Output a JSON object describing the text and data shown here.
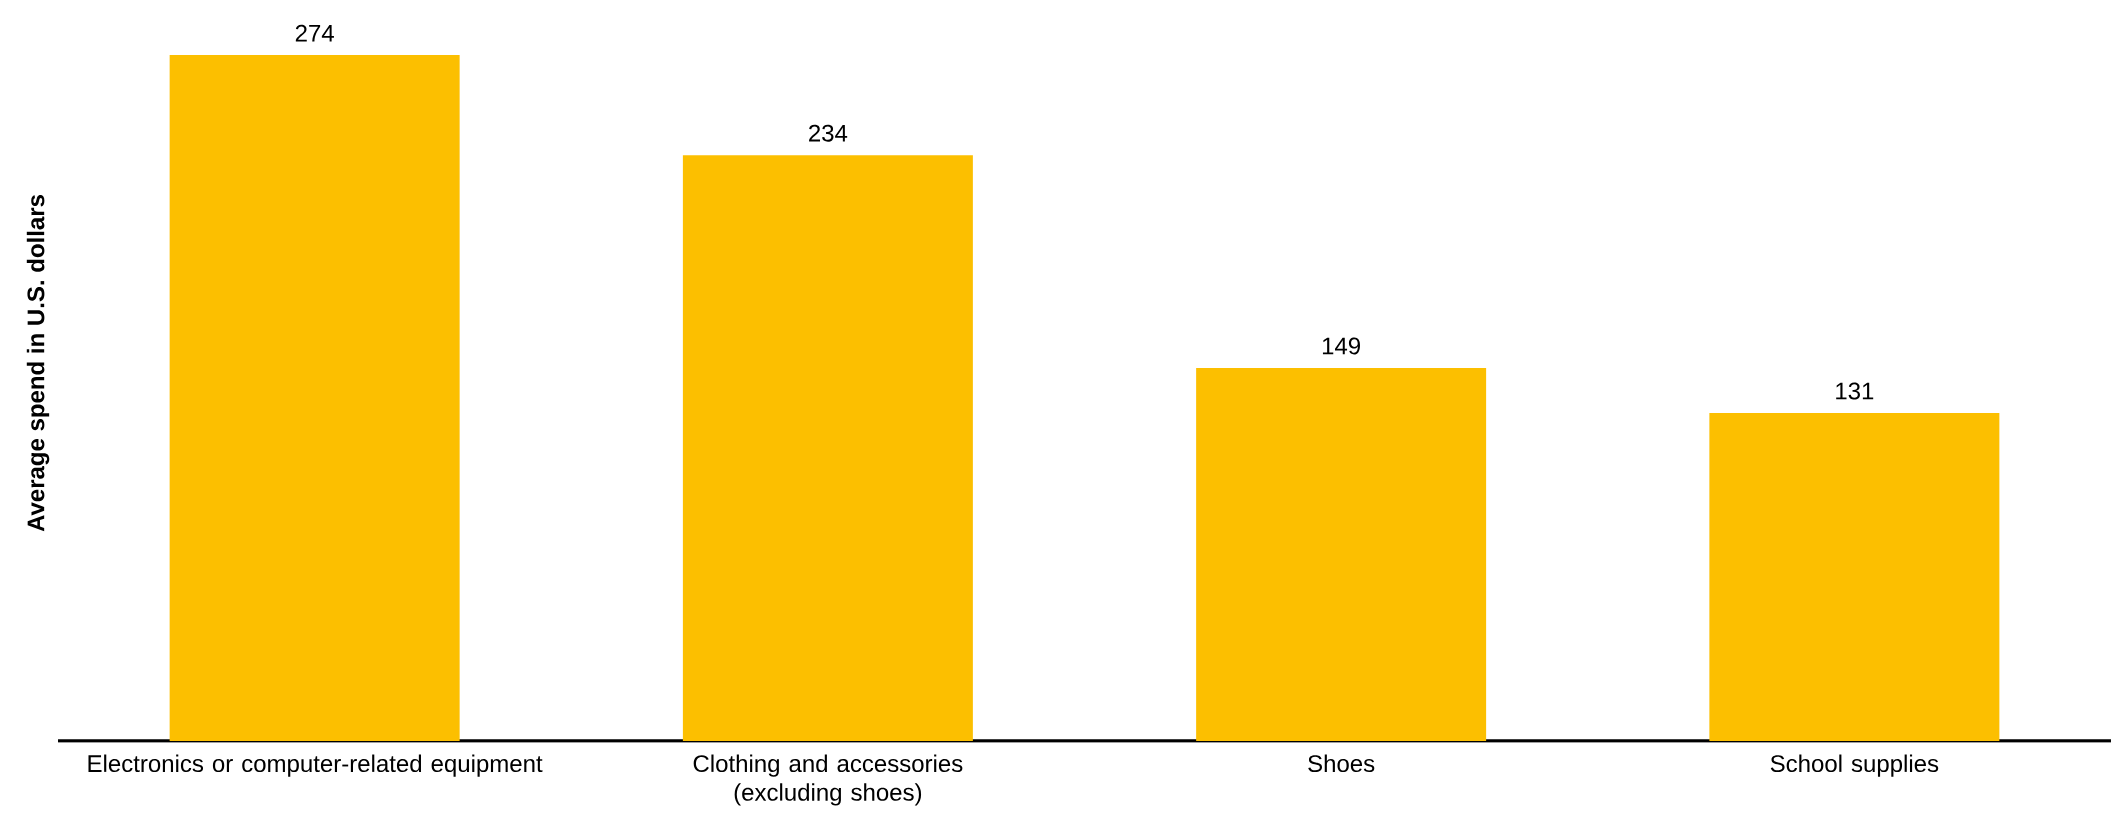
{
  "chart_data": {
    "type": "bar",
    "ylabel": "Average spend in U.S. dollars",
    "categories": [
      "Electronics or computer-related equipment",
      "Clothing and accessories (excluding shoes)",
      "Shoes",
      "School supplies"
    ],
    "values": [
      274,
      234,
      149,
      131
    ],
    "color": "#fcbf00",
    "data_labels": true
  }
}
